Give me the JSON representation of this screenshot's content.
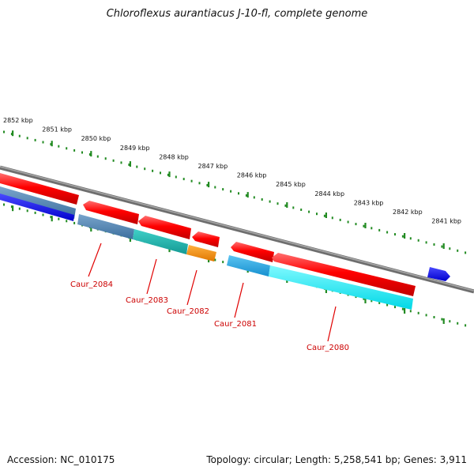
{
  "title": "Chloroflexus aurantiacus J-10-fl, complete genome",
  "footer": {
    "accession": "Accession: NC_010175",
    "summary": "Topology: circular; Length: 5,258,541 bp; Genes: 3,911"
  },
  "colors": {
    "backbone": "#808080",
    "ticks": "#228b22",
    "label_text": "#cc0000",
    "red_strand": "#ff0000",
    "blue_strand": "#0000ee",
    "cyan_strand": "#00e5ee",
    "steel": "#4a7fb0",
    "teal": "#20b2aa",
    "orange": "#ff8c00",
    "sky": "#1fa3e0"
  },
  "ticks": [
    {
      "label": "2852 kbp"
    },
    {
      "label": "2851 kbp"
    },
    {
      "label": "2850 kbp"
    },
    {
      "label": "2849 kbp"
    },
    {
      "label": "2848 kbp"
    },
    {
      "label": "2847 kbp"
    },
    {
      "label": "2846 kbp"
    },
    {
      "label": "2845 kbp"
    },
    {
      "label": "2844 kbp"
    },
    {
      "label": "2843 kbp"
    },
    {
      "label": "2842 kbp"
    },
    {
      "label": "2841 kbp"
    }
  ],
  "gene_labels": [
    {
      "name": "Caur_2084"
    },
    {
      "name": "Caur_2083"
    },
    {
      "name": "Caur_2082"
    },
    {
      "name": "Caur_2081"
    },
    {
      "name": "Caur_2080"
    }
  ]
}
